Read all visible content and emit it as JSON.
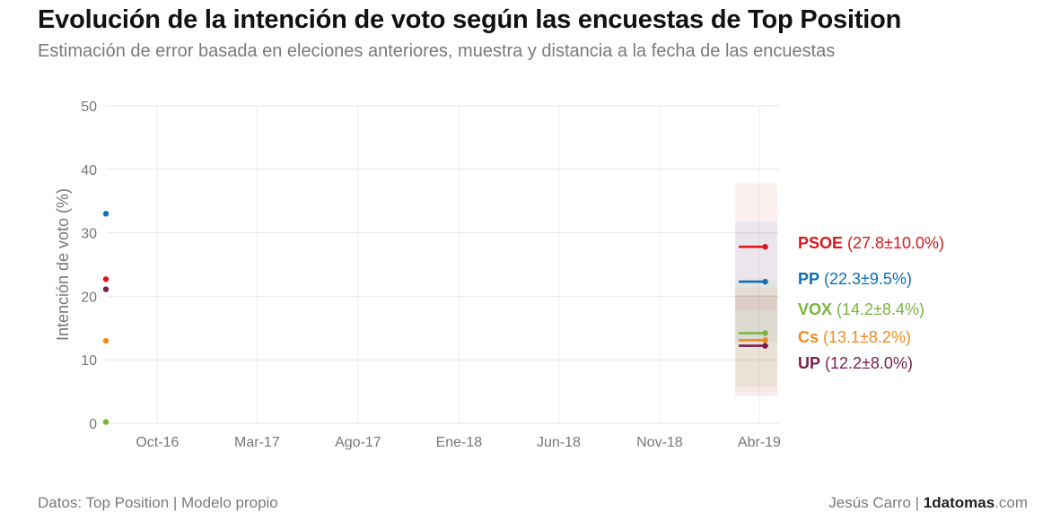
{
  "header": {
    "title": "Evolución de la intención de voto según las encuestas de Top Position",
    "subtitle": "Estimación de error basada en eleciones anteriores, muestra y distancia a la fecha de las encuestas"
  },
  "footer": {
    "source": "Datos: Top Position | Modelo propio",
    "author": "Jesús Carro",
    "separator": " | ",
    "brand_bold": "1datomas",
    "brand_suffix": ".com"
  },
  "chart_data": {
    "type": "line",
    "title": "Evolución de la intención de voto según las encuestas de Top Position",
    "subtitle": "Estimación de error basada en eleciones anteriores, muestra y distancia a la fecha de las encuestas",
    "xlabel": "",
    "ylabel": "Intención de voto (%)",
    "ylim": [
      0,
      50
    ],
    "yticks": [
      0,
      10,
      20,
      30,
      40,
      50
    ],
    "xlim": [
      "2016-07-15",
      "2019-05-01"
    ],
    "xticks": [
      {
        "date": "2016-10-01",
        "label": "Oct-16"
      },
      {
        "date": "2017-03-01",
        "label": "Mar-17"
      },
      {
        "date": "2017-08-01",
        "label": "Ago-17"
      },
      {
        "date": "2018-01-01",
        "label": "Ene-18"
      },
      {
        "date": "2018-06-01",
        "label": "Jun-18"
      },
      {
        "date": "2018-11-01",
        "label": "Nov-18"
      },
      {
        "date": "2019-04-01",
        "label": "Abr-19"
      }
    ],
    "grid": true,
    "legend": "right-labels",
    "series": [
      {
        "name": "PSOE",
        "color": "#d7191c",
        "start": {
          "date": "2016-07-15",
          "value": 22.7
        },
        "polls": [
          {
            "date": "2019-03-01",
            "value": 27.8
          },
          {
            "date": "2019-04-10",
            "value": 27.8
          }
        ],
        "estimate": 27.8,
        "error": 10.0,
        "label_value": "(27.8±10.0%)"
      },
      {
        "name": "PP",
        "color": "#0f6fb5",
        "start": {
          "date": "2016-07-15",
          "value": 33.0
        },
        "polls": [
          {
            "date": "2019-03-01",
            "value": 22.3
          },
          {
            "date": "2019-04-10",
            "value": 22.3
          }
        ],
        "estimate": 22.3,
        "error": 9.5,
        "label_value": "(22.3±9.5%)"
      },
      {
        "name": "VOX",
        "color": "#78b53a",
        "start": {
          "date": "2016-07-15",
          "value": 0.2
        },
        "polls": [
          {
            "date": "2019-03-01",
            "value": 14.2
          },
          {
            "date": "2019-04-10",
            "value": 14.2
          }
        ],
        "estimate": 14.2,
        "error": 8.4,
        "label_value": "(14.2±8.4%)"
      },
      {
        "name": "Cs",
        "color": "#f28a1e",
        "start": {
          "date": "2016-07-15",
          "value": 13.0
        },
        "polls": [
          {
            "date": "2019-03-01",
            "value": 13.1
          },
          {
            "date": "2019-04-10",
            "value": 13.1
          }
        ],
        "estimate": 13.1,
        "error": 8.2,
        "label_value": "(13.1±8.2%)"
      },
      {
        "name": "UP",
        "color": "#7b1d4c",
        "start": {
          "date": "2016-07-15",
          "value": 21.1
        },
        "polls": [
          {
            "date": "2019-03-01",
            "value": 12.2
          },
          {
            "date": "2019-04-10",
            "value": 12.2
          }
        ],
        "estimate": 12.2,
        "error": 8.0,
        "label_value": "(12.2±8.0%)"
      }
    ]
  }
}
